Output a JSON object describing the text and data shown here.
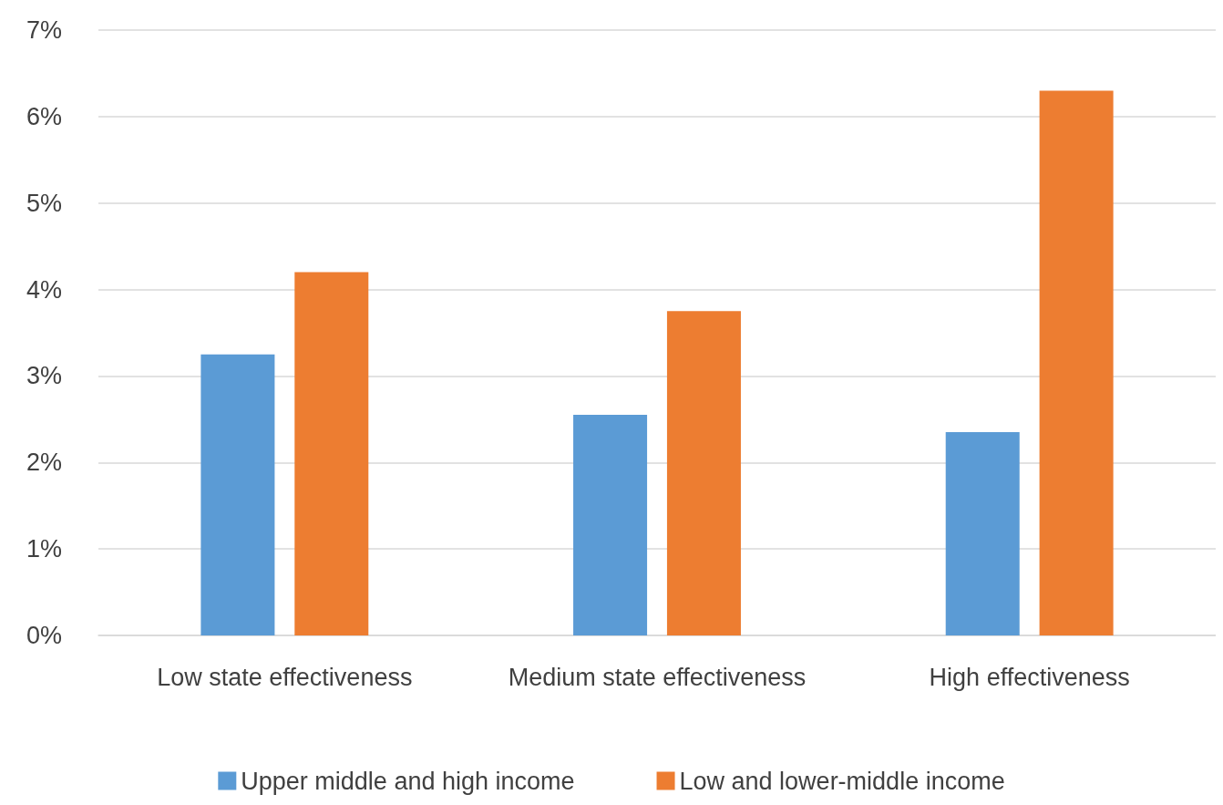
{
  "chart_data": {
    "type": "bar",
    "categories": [
      "Low state effectiveness",
      "Medium state effectiveness",
      "High effectiveness"
    ],
    "series": [
      {
        "name": "Upper middle and high income",
        "color": "#5b9bd5",
        "values": [
          3.25,
          2.55,
          2.35
        ]
      },
      {
        "name": "Low and lower-middle income",
        "color": "#ed7d31",
        "values": [
          4.2,
          3.75,
          6.3
        ]
      }
    ],
    "ylim": [
      0,
      7
    ],
    "yticks": [
      {
        "value": 0,
        "label": "0%"
      },
      {
        "value": 1,
        "label": "1%"
      },
      {
        "value": 2,
        "label": "2%"
      },
      {
        "value": 3,
        "label": "3%"
      },
      {
        "value": 4,
        "label": "4%"
      },
      {
        "value": 5,
        "label": "5%"
      },
      {
        "value": 6,
        "label": "6%"
      },
      {
        "value": 7,
        "label": "7%"
      }
    ],
    "grid": "y",
    "legend": "bottom"
  }
}
